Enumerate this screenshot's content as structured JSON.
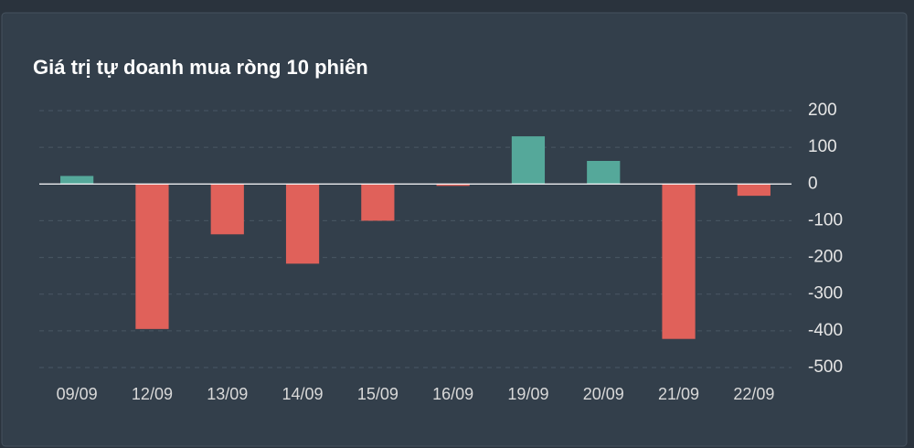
{
  "chart_data": {
    "type": "bar",
    "title": "Giá trị tự doanh mua ròng 10 phiên",
    "categories": [
      "09/09",
      "12/09",
      "13/09",
      "14/09",
      "15/09",
      "16/09",
      "19/09",
      "20/09",
      "21/09",
      "22/09"
    ],
    "values": [
      22,
      -395,
      -137,
      -217,
      -100,
      -5,
      130,
      63,
      -422,
      -32
    ],
    "positive_color": "#55a89a",
    "negative_color": "#e0615a",
    "ylim": [
      -500,
      200
    ],
    "yticks": [
      200,
      100,
      0,
      -100,
      -200,
      -300,
      -400,
      -500
    ],
    "grid": true
  }
}
